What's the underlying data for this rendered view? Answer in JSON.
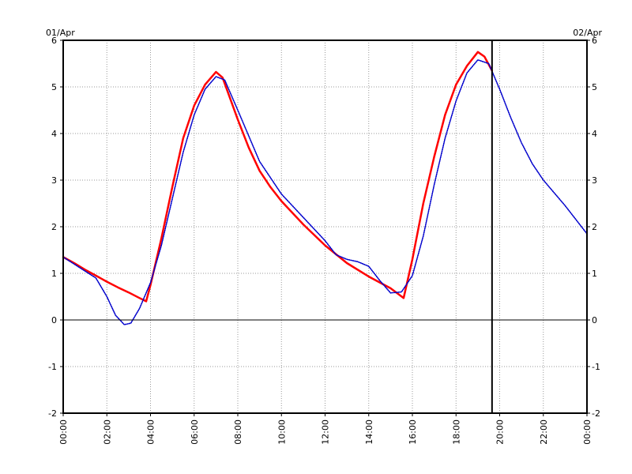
{
  "header": {
    "start_date": "01/Apr",
    "end_date": "02/Apr"
  },
  "chart_data": {
    "type": "line",
    "title": "",
    "xlabel": "",
    "ylabel": "",
    "xlim": [
      0,
      24
    ],
    "ylim": [
      -2,
      6
    ],
    "grid": true,
    "y_ticks": [
      -2,
      -1,
      0,
      1,
      2,
      3,
      4,
      5,
      6
    ],
    "x_tick_labels": [
      "00:00",
      "02:00",
      "04:00",
      "06:00",
      "08:00",
      "10:00",
      "12:00",
      "14:00",
      "16:00",
      "18:00",
      "20:00",
      "22:00",
      "00:00"
    ],
    "now_marker_hour": 19.65,
    "colors": {
      "series_1": "#ff0000",
      "series_2": "#0000cc",
      "grid": "#999999",
      "axis": "#000000"
    },
    "series": [
      {
        "style": "solid",
        "points": [
          [
            0,
            1.35
          ],
          [
            0.5,
            1.22
          ],
          [
            1.0,
            1.08
          ],
          [
            1.5,
            0.95
          ],
          [
            2.0,
            0.82
          ],
          [
            2.5,
            0.7
          ],
          [
            3.0,
            0.59
          ],
          [
            3.5,
            0.47
          ],
          [
            3.8,
            0.4
          ],
          [
            4.0,
            0.75
          ],
          [
            4.5,
            1.75
          ],
          [
            5.0,
            2.85
          ],
          [
            5.5,
            3.9
          ],
          [
            6.0,
            4.6
          ],
          [
            6.5,
            5.05
          ],
          [
            7.0,
            5.32
          ],
          [
            7.3,
            5.2
          ],
          [
            8.0,
            4.3
          ],
          [
            8.5,
            3.7
          ],
          [
            9.0,
            3.2
          ],
          [
            9.5,
            2.85
          ],
          [
            10.0,
            2.55
          ],
          [
            11.0,
            2.05
          ],
          [
            12.0,
            1.6
          ],
          [
            13.0,
            1.22
          ],
          [
            14.0,
            0.93
          ],
          [
            15.0,
            0.68
          ],
          [
            15.6,
            0.47
          ],
          [
            16.0,
            1.3
          ],
          [
            16.5,
            2.5
          ],
          [
            17.0,
            3.5
          ],
          [
            17.5,
            4.4
          ],
          [
            18.0,
            5.05
          ],
          [
            18.5,
            5.45
          ],
          [
            19.0,
            5.75
          ],
          [
            19.3,
            5.65
          ],
          [
            19.65,
            5.35
          ]
        ]
      },
      {
        "style": "dotted",
        "points": [
          [
            0,
            1.35
          ],
          [
            0.5,
            1.2
          ],
          [
            1.0,
            1.05
          ],
          [
            1.5,
            0.9
          ],
          [
            2.0,
            0.5
          ],
          [
            2.4,
            0.1
          ],
          [
            2.8,
            -0.1
          ],
          [
            3.1,
            -0.07
          ],
          [
            3.5,
            0.25
          ],
          [
            4.0,
            0.8
          ],
          [
            4.5,
            1.6
          ],
          [
            5.0,
            2.6
          ],
          [
            5.5,
            3.6
          ],
          [
            6.0,
            4.4
          ],
          [
            6.5,
            4.95
          ],
          [
            7.0,
            5.22
          ],
          [
            7.4,
            5.15
          ],
          [
            8.0,
            4.5
          ],
          [
            8.5,
            3.95
          ],
          [
            9.0,
            3.4
          ],
          [
            10.0,
            2.7
          ],
          [
            11.0,
            2.2
          ],
          [
            12.0,
            1.7
          ],
          [
            12.5,
            1.4
          ],
          [
            13.0,
            1.3
          ],
          [
            13.5,
            1.25
          ],
          [
            14.0,
            1.15
          ],
          [
            14.5,
            0.85
          ],
          [
            15.0,
            0.58
          ],
          [
            15.5,
            0.6
          ],
          [
            16.0,
            0.95
          ],
          [
            16.5,
            1.8
          ],
          [
            17.0,
            2.9
          ],
          [
            17.5,
            3.9
          ],
          [
            18.0,
            4.7
          ],
          [
            18.5,
            5.3
          ],
          [
            19.0,
            5.58
          ],
          [
            19.5,
            5.5
          ],
          [
            20.0,
            4.95
          ],
          [
            20.5,
            4.35
          ],
          [
            21.0,
            3.8
          ],
          [
            21.5,
            3.35
          ],
          [
            22.0,
            3.0
          ],
          [
            23.0,
            2.45
          ],
          [
            24.0,
            1.85
          ]
        ]
      }
    ]
  }
}
